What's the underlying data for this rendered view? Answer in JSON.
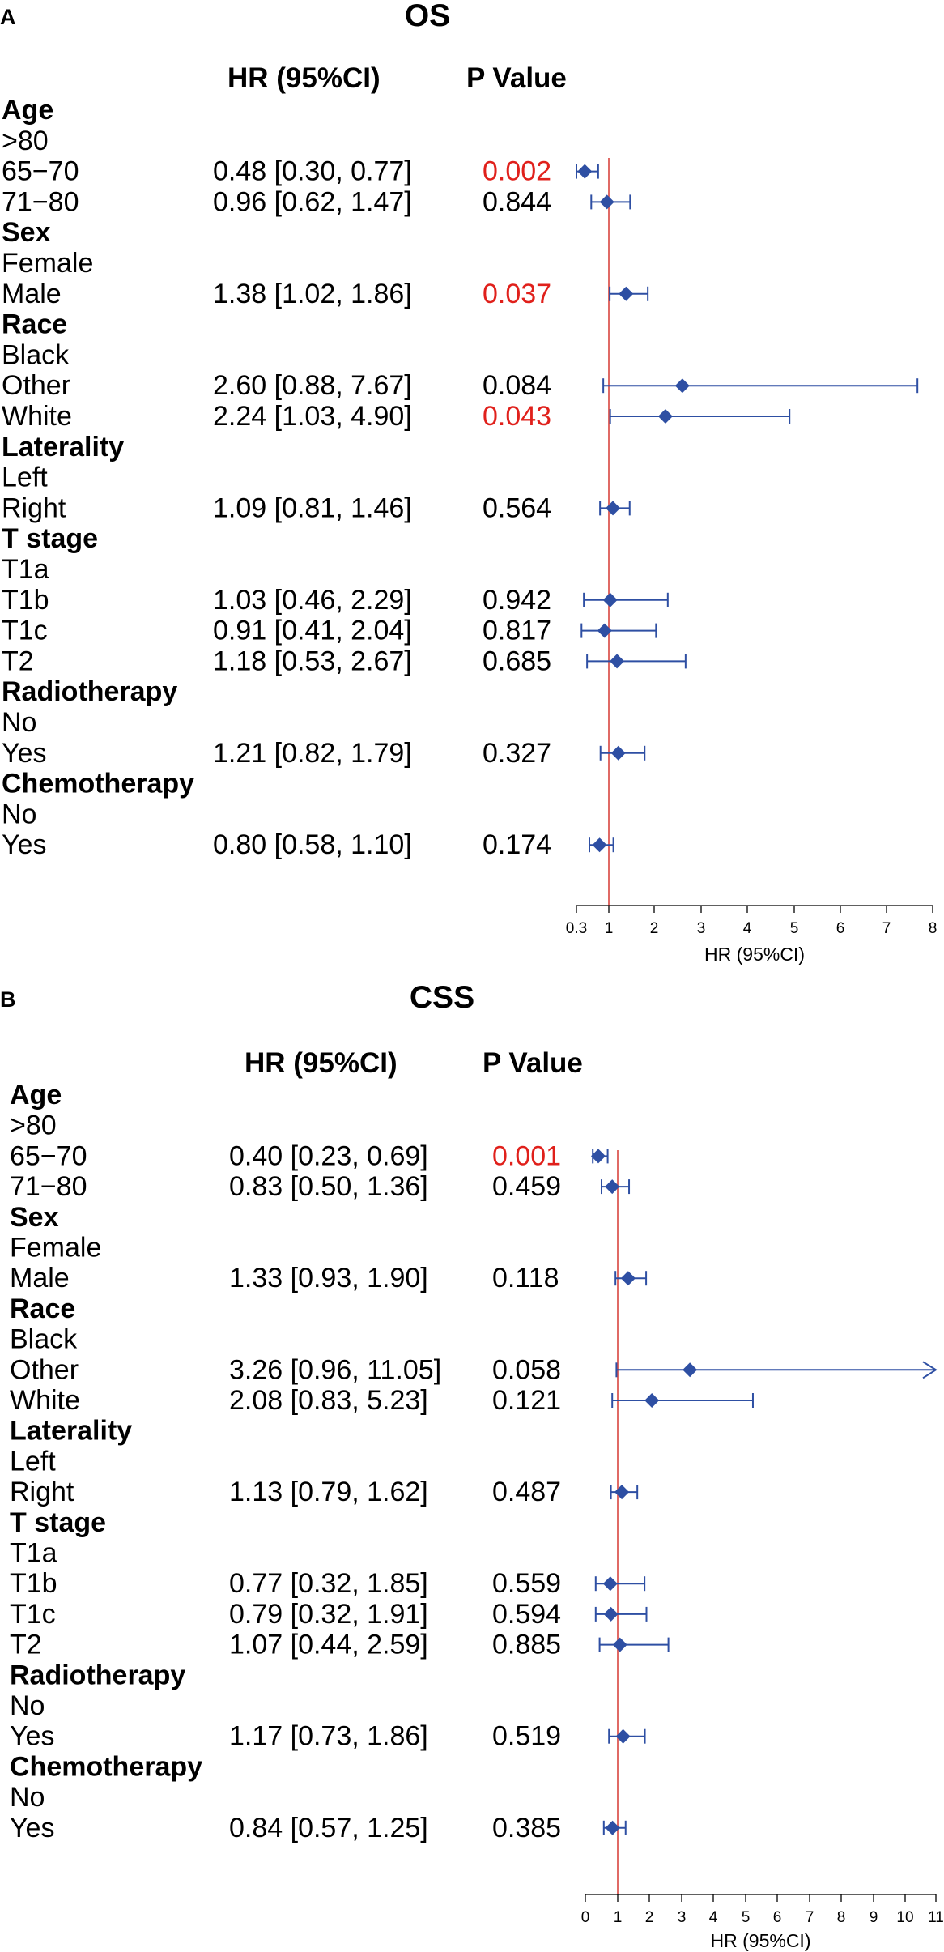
{
  "chart_data": [
    {
      "type": "forest",
      "panel": "A",
      "title": "OS",
      "columns": {
        "hr": "HR (95%CI)",
        "p": "P Value"
      },
      "xlabel": "HR (95%CI)",
      "xlim": [
        0.3,
        8
      ],
      "ticks": [
        0.3,
        1,
        2,
        3,
        4,
        5,
        6,
        7,
        8
      ],
      "tick_labels": [
        "0.3",
        "1",
        "2",
        "3",
        "4",
        "5",
        "6",
        "7",
        "8"
      ],
      "reference_line": 1,
      "arrow_right": false,
      "rows": [
        {
          "label": "Age",
          "header": true
        },
        {
          "label": ">80",
          "reference": true
        },
        {
          "label": "65−70",
          "hr": 0.48,
          "lo": 0.3,
          "hi": 0.77,
          "hr_text": "0.48 [0.30, 0.77]",
          "p": "0.002",
          "significant": true
        },
        {
          "label": "71−80",
          "hr": 0.96,
          "lo": 0.62,
          "hi": 1.47,
          "hr_text": "0.96 [0.62, 1.47]",
          "p": "0.844",
          "significant": false
        },
        {
          "label": "Sex",
          "header": true
        },
        {
          "label": "Female",
          "reference": true
        },
        {
          "label": "Male",
          "hr": 1.38,
          "lo": 1.02,
          "hi": 1.86,
          "hr_text": "1.38 [1.02, 1.86]",
          "p": "0.037",
          "significant": true
        },
        {
          "label": "Race",
          "header": true
        },
        {
          "label": "Black",
          "reference": true
        },
        {
          "label": "Other",
          "hr": 2.6,
          "lo": 0.88,
          "hi": 7.67,
          "hr_text": "2.60 [0.88, 7.67]",
          "p": "0.084",
          "significant": false
        },
        {
          "label": "White",
          "hr": 2.24,
          "lo": 1.03,
          "hi": 4.9,
          "hr_text": "2.24 [1.03, 4.90]",
          "p": "0.043",
          "significant": true
        },
        {
          "label": "Laterality",
          "header": true
        },
        {
          "label": "Left",
          "reference": true
        },
        {
          "label": "Right",
          "hr": 1.09,
          "lo": 0.81,
          "hi": 1.46,
          "hr_text": "1.09 [0.81, 1.46]",
          "p": "0.564",
          "significant": false
        },
        {
          "label": "T stage",
          "header": true
        },
        {
          "label": "T1a",
          "reference": true
        },
        {
          "label": "T1b",
          "hr": 1.03,
          "lo": 0.46,
          "hi": 2.29,
          "hr_text": "1.03 [0.46, 2.29]",
          "p": "0.942",
          "significant": false
        },
        {
          "label": "T1c",
          "hr": 0.91,
          "lo": 0.41,
          "hi": 2.04,
          "hr_text": "0.91 [0.41, 2.04]",
          "p": "0.817",
          "significant": false
        },
        {
          "label": "T2",
          "hr": 1.18,
          "lo": 0.53,
          "hi": 2.67,
          "hr_text": "1.18 [0.53, 2.67]",
          "p": "0.685",
          "significant": false
        },
        {
          "label": "Radiotherapy",
          "header": true
        },
        {
          "label": "No",
          "reference": true
        },
        {
          "label": "Yes",
          "hr": 1.21,
          "lo": 0.82,
          "hi": 1.79,
          "hr_text": "1.21 [0.82, 1.79]",
          "p": "0.327",
          "significant": false
        },
        {
          "label": "Chemotherapy",
          "header": true
        },
        {
          "label": "No",
          "reference": true
        },
        {
          "label": "Yes",
          "hr": 0.8,
          "lo": 0.58,
          "hi": 1.1,
          "hr_text": "0.80 [0.58, 1.10]",
          "p": "0.174",
          "significant": false
        }
      ]
    },
    {
      "type": "forest",
      "panel": "B",
      "title": "CSS",
      "columns": {
        "hr": "HR (95%CI)",
        "p": "P Value"
      },
      "xlabel": "HR (95%CI)",
      "xlim": [
        0,
        11
      ],
      "ticks": [
        0,
        1,
        2,
        3,
        4,
        5,
        6,
        7,
        8,
        9,
        10,
        11
      ],
      "tick_labels": [
        "0",
        "1",
        "2",
        "3",
        "4",
        "5",
        "6",
        "7",
        "8",
        "9",
        "10",
        "11"
      ],
      "reference_line": 1,
      "arrow_right": true,
      "rows": [
        {
          "label": "Age",
          "header": true
        },
        {
          "label": ">80",
          "reference": true
        },
        {
          "label": "65−70",
          "hr": 0.4,
          "lo": 0.23,
          "hi": 0.69,
          "hr_text": "0.40 [0.23, 0.69]",
          "p": "0.001",
          "significant": true
        },
        {
          "label": "71−80",
          "hr": 0.83,
          "lo": 0.5,
          "hi": 1.36,
          "hr_text": "0.83 [0.50, 1.36]",
          "p": "0.459",
          "significant": false
        },
        {
          "label": "Sex",
          "header": true
        },
        {
          "label": "Female",
          "reference": true
        },
        {
          "label": "Male",
          "hr": 1.33,
          "lo": 0.93,
          "hi": 1.9,
          "hr_text": "1.33 [0.93, 1.90]",
          "p": "0.118",
          "significant": false
        },
        {
          "label": "Race",
          "header": true
        },
        {
          "label": "Black",
          "reference": true
        },
        {
          "label": "Other",
          "hr": 3.26,
          "lo": 0.96,
          "hi": 11.05,
          "hr_text": "3.26 [0.96, 11.05]",
          "p": "0.058",
          "significant": false
        },
        {
          "label": "White",
          "hr": 2.08,
          "lo": 0.83,
          "hi": 5.23,
          "hr_text": "2.08 [0.83, 5.23]",
          "p": "0.121",
          "significant": false
        },
        {
          "label": "Laterality",
          "header": true
        },
        {
          "label": "Left",
          "reference": true
        },
        {
          "label": "Right",
          "hr": 1.13,
          "lo": 0.79,
          "hi": 1.62,
          "hr_text": "1.13 [0.79, 1.62]",
          "p": "0.487",
          "significant": false
        },
        {
          "label": "T stage",
          "header": true
        },
        {
          "label": "T1a",
          "reference": true
        },
        {
          "label": "T1b",
          "hr": 0.77,
          "lo": 0.32,
          "hi": 1.85,
          "hr_text": "0.77 [0.32, 1.85]",
          "p": "0.559",
          "significant": false
        },
        {
          "label": "T1c",
          "hr": 0.79,
          "lo": 0.32,
          "hi": 1.91,
          "hr_text": "0.79 [0.32, 1.91]",
          "p": "0.594",
          "significant": false
        },
        {
          "label": "T2",
          "hr": 1.07,
          "lo": 0.44,
          "hi": 2.59,
          "hr_text": "1.07 [0.44, 2.59]",
          "p": "0.885",
          "significant": false
        },
        {
          "label": "Radiotherapy",
          "header": true
        },
        {
          "label": "No",
          "reference": true
        },
        {
          "label": "Yes",
          "hr": 1.17,
          "lo": 0.73,
          "hi": 1.86,
          "hr_text": "1.17 [0.73, 1.86]",
          "p": "0.519",
          "significant": false
        },
        {
          "label": "Chemotherapy",
          "header": true
        },
        {
          "label": "No",
          "reference": true
        },
        {
          "label": "Yes",
          "hr": 0.84,
          "lo": 0.57,
          "hi": 1.25,
          "hr_text": "0.84 [0.57, 1.25]",
          "p": "0.385",
          "significant": false
        }
      ]
    }
  ],
  "colors": {
    "marker": "#2e4fa3",
    "reference_line": "#d9453f",
    "significant_p": "#e0201b",
    "text": "#000000",
    "axis": "#000000"
  }
}
